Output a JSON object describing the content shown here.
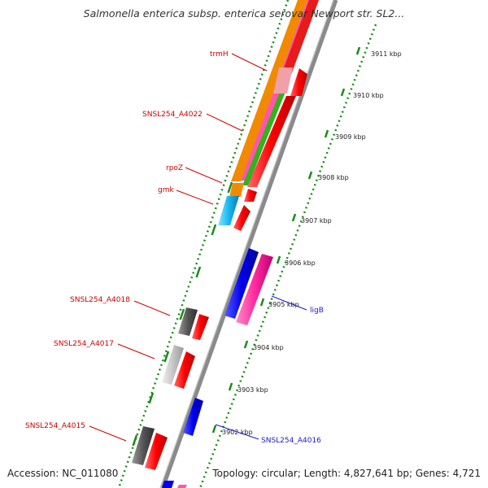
{
  "title": "Salmonella enterica subsp. enterica serovar Newport str. SL2...",
  "footer": {
    "accession": "Accession: NC_011080",
    "stats": "Topology: circular; Length: 4,827,641 bp; Genes: 4,721"
  },
  "colors": {
    "accent_red": "#ff0000",
    "label_red": "#cc0000",
    "label_blue": "#1a1acc",
    "tick_green": "#1a8c1a",
    "backbone_gray": "#8a8a8a"
  },
  "kbp_ticks": [
    "3902 kbp",
    "3903 kbp",
    "3904 kbp",
    "3905 kbp",
    "3906 kbp",
    "3907 kbp",
    "3908 kbp",
    "3909 kbp",
    "3910 kbp",
    "3911 kbp"
  ],
  "gene_labels": {
    "trmH": "trmH",
    "a4022": "SNSL254_A4022",
    "rpoZ": "rpoZ",
    "gmk": "gmk",
    "a4018": "SNSL254_A4018",
    "a4017": "SNSL254_A4017",
    "a4015": "SNSL254_A4015",
    "ligB": "ligB",
    "a4016": "SNSL254_A4016"
  }
}
